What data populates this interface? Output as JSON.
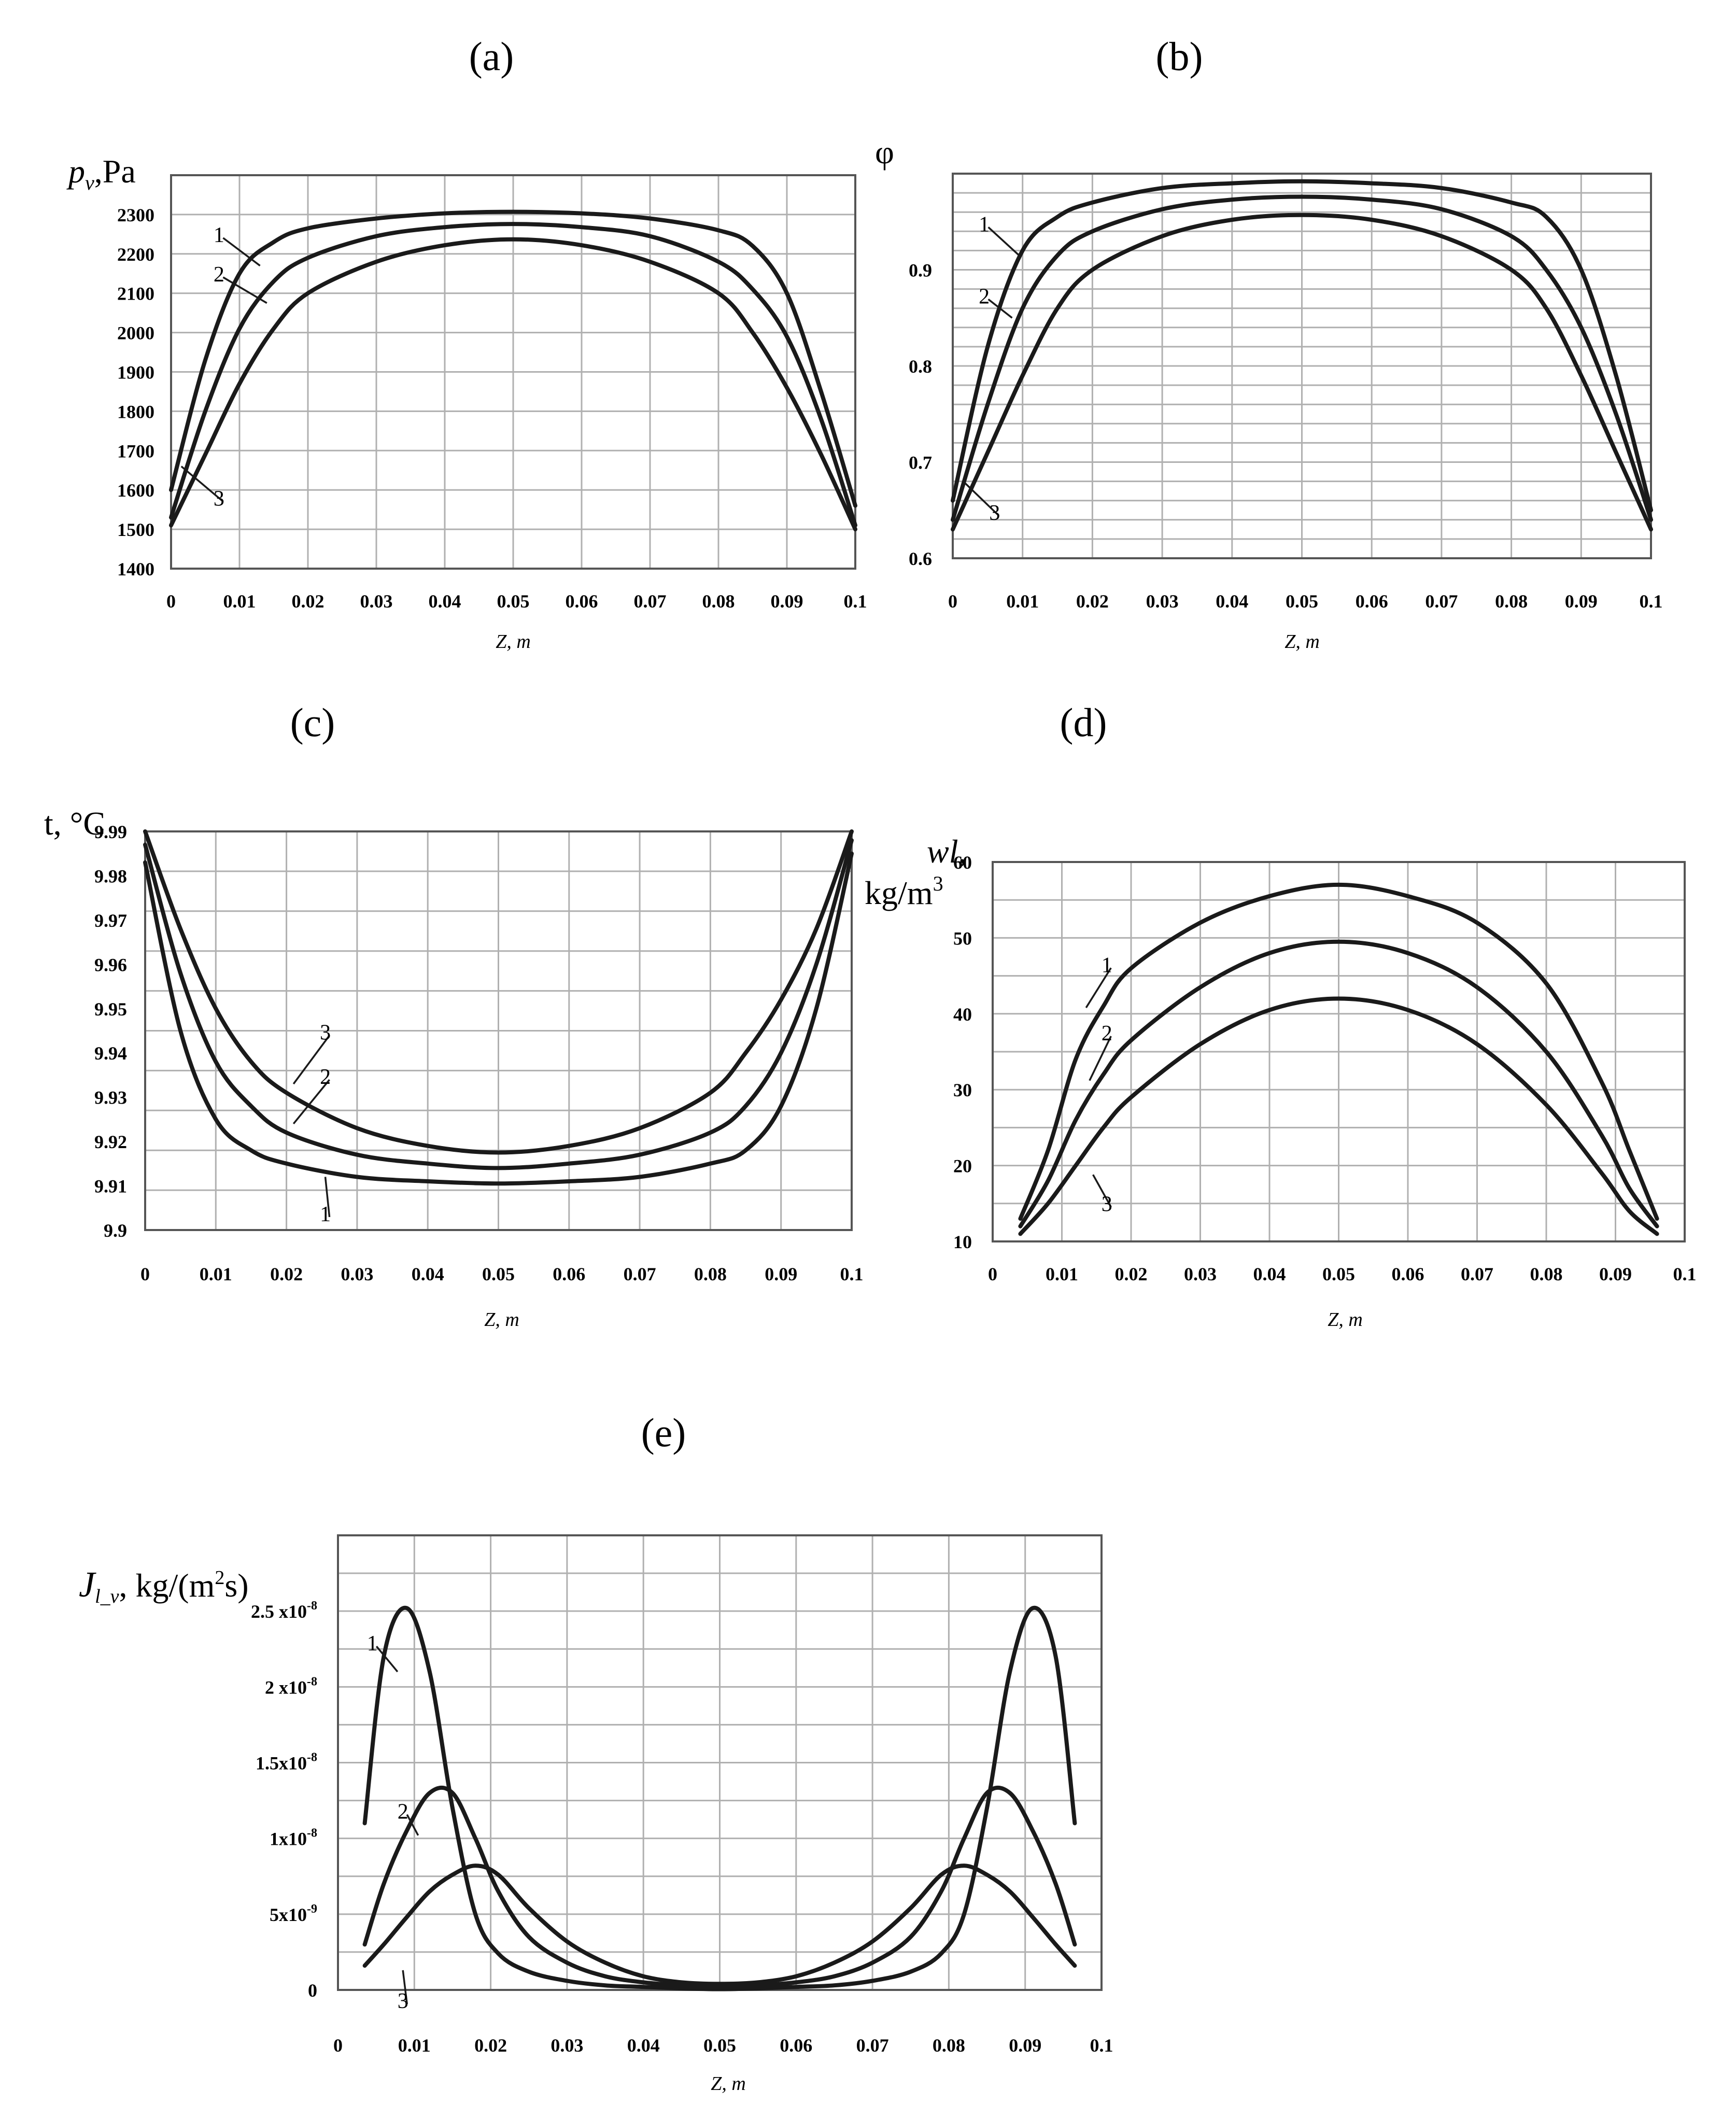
{
  "figure": {
    "panels": [
      "(a)",
      "(b)",
      "(c)",
      "(d)",
      "(e)"
    ]
  },
  "chart_data": [
    {
      "id": "a",
      "panel_label": "(a)",
      "type": "line",
      "ylabel": "p",
      "ylabel_subscript": "v",
      "ylabel_unit": ",Pa",
      "xlabel": "Z, m",
      "xlim": [
        0,
        0.1
      ],
      "ylim": [
        1400,
        2400
      ],
      "xticks": [
        "0",
        "0.01",
        "0.02",
        "0.03",
        "0.04",
        "0.05",
        "0.06",
        "0.07",
        "0.08",
        "0.09",
        "0.1"
      ],
      "yticks": [
        "1400",
        "1500",
        "1600",
        "1700",
        "1800",
        "1900",
        "2000",
        "2100",
        "2200",
        "2300"
      ],
      "x": [
        0,
        0.005,
        0.01,
        0.015,
        0.02,
        0.03,
        0.04,
        0.05,
        0.06,
        0.07,
        0.08,
        0.085,
        0.09,
        0.095,
        0.1
      ],
      "series": [
        {
          "name": "1",
          "values": [
            1600,
            1930,
            2150,
            2230,
            2265,
            2290,
            2303,
            2307,
            2303,
            2290,
            2260,
            2220,
            2100,
            1850,
            1560
          ]
        },
        {
          "name": "2",
          "values": [
            1530,
            1800,
            2010,
            2130,
            2190,
            2245,
            2268,
            2276,
            2268,
            2245,
            2180,
            2110,
            1990,
            1780,
            1510
          ]
        },
        {
          "name": "3",
          "values": [
            1510,
            1690,
            1870,
            2010,
            2100,
            2180,
            2222,
            2237,
            2222,
            2180,
            2100,
            2000,
            1860,
            1690,
            1500
          ]
        }
      ],
      "curve_tags": [
        {
          "text": "1",
          "x": 0.007,
          "y": 2230,
          "series": "1",
          "tx": 0.013,
          "ty": 2170
        },
        {
          "text": "2",
          "x": 0.007,
          "y": 2130,
          "series": "2",
          "tx": 0.014,
          "ty": 2075
        },
        {
          "text": "3",
          "x": 0.007,
          "y": 1560,
          "series": "3",
          "tx": 0.0015,
          "ty": 1660
        }
      ]
    },
    {
      "id": "b",
      "panel_label": "(b)",
      "type": "line",
      "ylabel": "φ",
      "xlabel": "Z, m",
      "xlim": [
        0,
        0.1
      ],
      "ylim": [
        0.6,
        1.0
      ],
      "xticks": [
        "0",
        "0.01",
        "0.02",
        "0.03",
        "0.04",
        "0.05",
        "0.06",
        "0.07",
        "0.08",
        "0.09",
        "0.1"
      ],
      "yticks": [
        "0.6",
        "0.7",
        "0.8",
        "0.9"
      ],
      "x": [
        0,
        0.005,
        0.01,
        0.015,
        0.02,
        0.03,
        0.04,
        0.05,
        0.06,
        0.07,
        0.08,
        0.085,
        0.09,
        0.095,
        0.1
      ],
      "series": [
        {
          "name": "1",
          "values": [
            0.66,
            0.82,
            0.92,
            0.955,
            0.97,
            0.985,
            0.99,
            0.992,
            0.99,
            0.985,
            0.97,
            0.955,
            0.9,
            0.79,
            0.65
          ]
        },
        {
          "name": "2",
          "values": [
            0.64,
            0.76,
            0.86,
            0.915,
            0.94,
            0.963,
            0.973,
            0.976,
            0.973,
            0.963,
            0.935,
            0.9,
            0.84,
            0.75,
            0.64
          ]
        },
        {
          "name": "3",
          "values": [
            0.63,
            0.71,
            0.79,
            0.86,
            0.9,
            0.935,
            0.952,
            0.957,
            0.952,
            0.935,
            0.9,
            0.86,
            0.79,
            0.71,
            0.63
          ]
        }
      ],
      "curve_tags": [
        {
          "text": "1",
          "x": 0.0045,
          "y": 0.94,
          "series": "1",
          "tx": 0.0095,
          "ty": 0.915
        },
        {
          "text": "2",
          "x": 0.0045,
          "y": 0.865,
          "series": "2",
          "tx": 0.0085,
          "ty": 0.85
        },
        {
          "text": "3",
          "x": 0.006,
          "y": 0.64,
          "series": "3",
          "tx": 0.0015,
          "ty": 0.68
        }
      ]
    },
    {
      "id": "c",
      "panel_label": "(c)",
      "type": "line",
      "ylabel": "t, °C",
      "xlabel": "Z, m",
      "xlim": [
        0,
        0.1
      ],
      "ylim": [
        9.9,
        9.99
      ],
      "xticks": [
        "0",
        "0.01",
        "0.02",
        "0.03",
        "0.04",
        "0.05",
        "0.06",
        "0.07",
        "0.08",
        "0.09",
        "0.1"
      ],
      "yticks": [
        "9.9",
        "9.91",
        "9.92",
        "9.93",
        "9.94",
        "9.95",
        "9.96",
        "9.97",
        "9.98",
        "9.99"
      ],
      "x": [
        0,
        0.005,
        0.01,
        0.015,
        0.02,
        0.03,
        0.04,
        0.05,
        0.06,
        0.07,
        0.08,
        0.085,
        0.09,
        0.095,
        0.1
      ],
      "series": [
        {
          "name": "1",
          "values": [
            9.983,
            9.945,
            9.925,
            9.918,
            9.915,
            9.912,
            9.911,
            9.9105,
            9.911,
            9.912,
            9.915,
            9.918,
            9.928,
            9.95,
            9.985
          ]
        },
        {
          "name": "2",
          "values": [
            9.987,
            9.958,
            9.938,
            9.928,
            9.922,
            9.917,
            9.915,
            9.914,
            9.915,
            9.917,
            9.922,
            9.928,
            9.94,
            9.96,
            9.988
          ]
        },
        {
          "name": "3",
          "values": [
            9.99,
            9.968,
            9.95,
            9.938,
            9.931,
            9.923,
            9.919,
            9.9175,
            9.919,
            9.923,
            9.931,
            9.94,
            9.952,
            9.968,
            9.99
          ]
        }
      ],
      "curve_tags": [
        {
          "text": "3",
          "x": 0.0255,
          "y": 9.943,
          "series": "3",
          "tx": 0.021,
          "ty": 9.933
        },
        {
          "text": "2",
          "x": 0.0255,
          "y": 9.933,
          "series": "2",
          "tx": 0.021,
          "ty": 9.924
        },
        {
          "text": "1",
          "x": 0.0255,
          "y": 9.902,
          "series": "1",
          "tx": 0.0255,
          "ty": 9.912
        }
      ]
    },
    {
      "id": "d",
      "panel_label": "(d)",
      "type": "line",
      "ylabel": "wl,",
      "ylabel_unit": "kg/m",
      "ylabel_sup": "3",
      "xlabel": "Z, m",
      "xlim": [
        0,
        0.1
      ],
      "ylim": [
        10,
        60
      ],
      "xticks": [
        "0",
        "0.01",
        "0.02",
        "0.03",
        "0.04",
        "0.05",
        "0.06",
        "0.07",
        "0.08",
        "0.09",
        "0.1"
      ],
      "yticks": [
        "10",
        "20",
        "30",
        "40",
        "50",
        "60"
      ],
      "x": [
        0.004,
        0.008,
        0.012,
        0.016,
        0.02,
        0.03,
        0.04,
        0.05,
        0.06,
        0.07,
        0.08,
        0.088,
        0.092,
        0.096
      ],
      "series": [
        {
          "name": "1",
          "values": [
            13,
            22,
            34,
            41,
            46,
            52,
            55.5,
            57,
            55.5,
            52,
            44,
            31,
            22,
            13
          ]
        },
        {
          "name": "2",
          "values": [
            12,
            18,
            26,
            32,
            36.5,
            43.5,
            48,
            49.5,
            48,
            43.5,
            35,
            24,
            17,
            12
          ]
        },
        {
          "name": "3",
          "values": [
            11,
            15,
            20,
            25,
            29,
            36,
            40.5,
            42,
            40.5,
            36,
            28,
            19,
            14,
            11
          ]
        }
      ],
      "curve_tags": [
        {
          "text": "1",
          "x": 0.0165,
          "y": 45.5,
          "series": "1",
          "tx": 0.0135,
          "ty": 40.8
        },
        {
          "text": "2",
          "x": 0.0165,
          "y": 36.5,
          "series": "2",
          "tx": 0.014,
          "ty": 31.2
        },
        {
          "text": "3",
          "x": 0.0165,
          "y": 14,
          "series": "3",
          "tx": 0.0145,
          "ty": 18.8
        }
      ]
    },
    {
      "id": "e",
      "panel_label": "(e)",
      "type": "line",
      "ylabel": "J",
      "ylabel_subscript": "l_v",
      "ylabel_unit": ", kg/(m",
      "ylabel_sup": "2",
      "ylabel_tail": "s)",
      "xlabel": "Z, m",
      "xlim": [
        0,
        0.1
      ],
      "ylim": [
        0,
        3e-08
      ],
      "xticks": [
        "0",
        "0.01",
        "0.02",
        "0.03",
        "0.04",
        "0.05",
        "0.06",
        "0.07",
        "0.08",
        "0.09",
        "0.1"
      ],
      "ytick_labels": [
        {
          "value": 0,
          "base": "0",
          "exp": ""
        },
        {
          "value": 5e-09,
          "base": "5x10",
          "exp": "-9"
        },
        {
          "value": 1e-08,
          "base": "1x10",
          "exp": "-8"
        },
        {
          "value": 1.5e-08,
          "base": "1.5x10",
          "exp": "-8"
        },
        {
          "value": 2e-08,
          "base": "2 x10",
          "exp": "-8"
        },
        {
          "value": 2.5e-08,
          "base": "2.5 x10",
          "exp": "-8"
        }
      ],
      "x": [
        0.0035,
        0.006,
        0.009,
        0.012,
        0.015,
        0.018,
        0.021,
        0.025,
        0.03,
        0.035,
        0.04,
        0.045,
        0.05,
        0.055,
        0.06,
        0.065,
        0.07,
        0.075,
        0.079,
        0.082,
        0.085,
        0.088,
        0.091,
        0.094,
        0.0965
      ],
      "series": [
        {
          "name": "1",
          "values": [
            1.1e-08,
            2.2e-08,
            2.52e-08,
            2.1e-08,
            1.2e-08,
            5e-09,
            2.4e-09,
            1.2e-09,
            6e-10,
            3e-10,
            2e-10,
            1e-10,
            5e-11,
            1e-10,
            2e-10,
            3e-10,
            6e-10,
            1.2e-09,
            2.4e-09,
            5e-09,
            1.2e-08,
            2.1e-08,
            2.52e-08,
            2.2e-08,
            1.1e-08
          ]
        },
        {
          "name": "2",
          "values": [
            3e-09,
            7e-09,
            1.05e-08,
            1.3e-08,
            1.3e-08,
            1e-08,
            6.5e-09,
            3.5e-09,
            1.8e-09,
            9e-10,
            5e-10,
            3e-10,
            2e-10,
            3e-10,
            5e-10,
            9e-10,
            1.8e-09,
            3.5e-09,
            6.5e-09,
            1e-08,
            1.3e-08,
            1.3e-08,
            1.05e-08,
            7e-09,
            3e-09
          ]
        },
        {
          "name": "3",
          "values": [
            1.6e-09,
            3e-09,
            4.8e-09,
            6.5e-09,
            7.6e-09,
            8.2e-09,
            7.6e-09,
            5.4e-09,
            3.2e-09,
            1.8e-09,
            9e-10,
            5e-10,
            4e-10,
            5e-10,
            9e-10,
            1.8e-09,
            3.2e-09,
            5.4e-09,
            7.6e-09,
            8.2e-09,
            7.6e-09,
            6.5e-09,
            4.8e-09,
            3e-09,
            1.6e-09
          ]
        }
      ],
      "curve_tags": [
        {
          "text": "1",
          "x": 0.0045,
          "y": 2.24e-08,
          "series": "1",
          "tx": 0.0078,
          "ty": 2.1e-08
        },
        {
          "text": "2",
          "x": 0.0085,
          "y": 1.13e-08,
          "series": "2",
          "tx": 0.0105,
          "ty": 1.02e-08
        },
        {
          "text": "3",
          "x": 0.0085,
          "y": -1.2e-09,
          "series": "3",
          "tx": 0.0085,
          "ty": 1.3e-09
        }
      ]
    }
  ]
}
